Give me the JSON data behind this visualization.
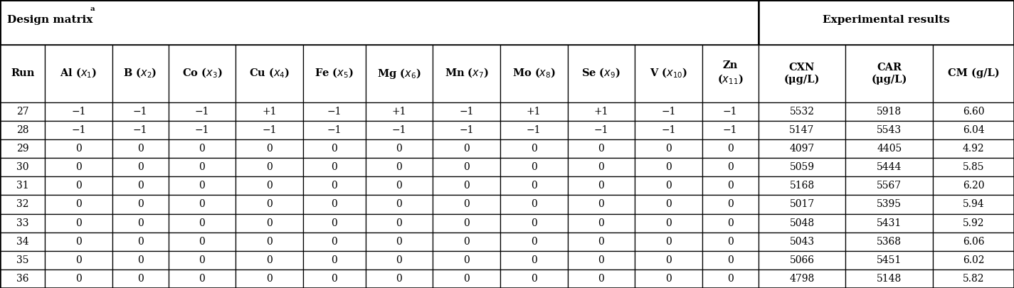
{
  "title_left": "Design matrix",
  "title_left_superscript": "a",
  "title_right": "Experimental results",
  "col_headers": [
    "Run",
    "Al ($\\bm{x_1}$)",
    "B ($\\bm{x_2}$)",
    "Co ($\\bm{x_3}$)",
    "Cu ($\\bm{x_4}$)",
    "Fe ($\\bm{x_5}$)",
    "Mg ($\\bm{x_6}$)",
    "Mn ($\\bm{x_7}$)",
    "Mo ($\\bm{x_8}$)",
    "Se ($\\bm{x_9}$)",
    "V ($\\bm{x_{10}}$)",
    "Zn\n($\\bm{x_{11}}$)",
    "CXN\n(μg/L)",
    "CAR\n(μg/L)",
    "CM (g/L)"
  ],
  "rows": [
    [
      "27",
      "−1",
      "−1",
      "−1",
      "+1",
      "−1",
      "+1",
      "−1",
      "+1",
      "+1",
      "−1",
      "−1",
      "5532",
      "5918",
      "6.60"
    ],
    [
      "28",
      "−1",
      "−1",
      "−1",
      "−1",
      "−1",
      "−1",
      "−1",
      "−1",
      "−1",
      "−1",
      "−1",
      "5147",
      "5543",
      "6.04"
    ],
    [
      "29",
      "0",
      "0",
      "0",
      "0",
      "0",
      "0",
      "0",
      "0",
      "0",
      "0",
      "0",
      "4097",
      "4405",
      "4.92"
    ],
    [
      "30",
      "0",
      "0",
      "0",
      "0",
      "0",
      "0",
      "0",
      "0",
      "0",
      "0",
      "0",
      "5059",
      "5444",
      "5.85"
    ],
    [
      "31",
      "0",
      "0",
      "0",
      "0",
      "0",
      "0",
      "0",
      "0",
      "0",
      "0",
      "0",
      "5168",
      "5567",
      "6.20"
    ],
    [
      "32",
      "0",
      "0",
      "0",
      "0",
      "0",
      "0",
      "0",
      "0",
      "0",
      "0",
      "0",
      "5017",
      "5395",
      "5.94"
    ],
    [
      "33",
      "0",
      "0",
      "0",
      "0",
      "0",
      "0",
      "0",
      "0",
      "0",
      "0",
      "0",
      "5048",
      "5431",
      "5.92"
    ],
    [
      "34",
      "0",
      "0",
      "0",
      "0",
      "0",
      "0",
      "0",
      "0",
      "0",
      "0",
      "0",
      "5043",
      "5368",
      "6.06"
    ],
    [
      "35",
      "0",
      "0",
      "0",
      "0",
      "0",
      "0",
      "0",
      "0",
      "0",
      "0",
      "0",
      "5066",
      "5451",
      "6.02"
    ],
    [
      "36",
      "0",
      "0",
      "0",
      "0",
      "0",
      "0",
      "0",
      "0",
      "0",
      "0",
      "0",
      "4798",
      "5148",
      "5.82"
    ]
  ],
  "n_design_cols": 12,
  "col_widths_raw": [
    3.6,
    5.4,
    4.5,
    5.4,
    5.4,
    5.0,
    5.4,
    5.4,
    5.4,
    5.4,
    5.4,
    4.5,
    7.0,
    7.0,
    6.5
  ],
  "background_color": "#ffffff",
  "font_size": 10,
  "header_font_size": 10.5,
  "title_font_size": 11
}
